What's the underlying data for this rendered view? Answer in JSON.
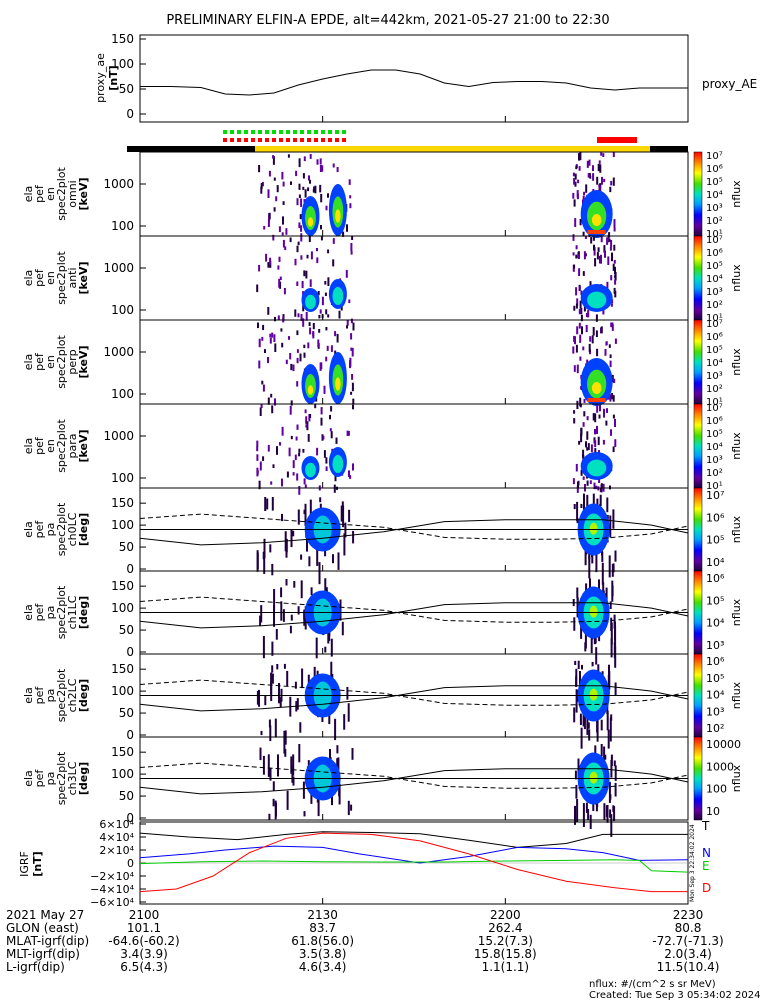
{
  "title": "PRELIMINARY ELFIN-A EPDE, alt=442km, 2021-05-27 21:00 to 22:30",
  "time_ticks": [
    "2100",
    "2130",
    "2200",
    "2230"
  ],
  "time_minutes": [
    0,
    30,
    60,
    90
  ],
  "footer": {
    "rows": [
      {
        "label": "2021 May 27",
        "values": [
          "2100",
          "2130",
          "2200",
          "2230"
        ]
      },
      {
        "label": "GLON (east)",
        "values": [
          "101.1",
          "83.7",
          "262.4",
          "80.8"
        ]
      },
      {
        "label": "MLAT-igrf(dip)",
        "values": [
          "-64.6(-60.2)",
          "61.8(56.0)",
          "15.2(7.3)",
          "-72.7(-71.3)"
        ]
      },
      {
        "label": "MLT-igrf(dip)",
        "values": [
          "3.4(3.9)",
          "3.5(3.8)",
          "15.8(15.8)",
          "2.0(3.4)"
        ]
      },
      {
        "label": "L-igrf(dip)",
        "values": [
          "6.5(4.3)",
          "4.6(3.4)",
          "1.1(1.1)",
          "11.5(10.4)"
        ]
      }
    ],
    "units_note": "nflux: #/(cm^2 s sr MeV)",
    "created": "Created: Tue Sep  3 05:34:02 2024",
    "side_stamp": "Mon Sep  3 22:34:02 2024"
  },
  "colors": {
    "ae": "#000000",
    "igrf_T": "#000000",
    "igrf_N": "#0000ff",
    "igrf_E": "#00cc00",
    "igrf_D": "#ff0000",
    "bar_yellow": "#ffd700",
    "bar_black": "#000000",
    "flag_green": "#00dd00",
    "flag_red": "#ff0000"
  },
  "chart_data": [
    {
      "type": "line",
      "name": "proxy_ae",
      "ylabel_lines": [
        "proxy_ae",
        "[nT]"
      ],
      "legend": "proxy_AE",
      "ylim": [
        0,
        150
      ],
      "yticks": [
        "0",
        "50",
        "100",
        "150"
      ],
      "x": [
        0,
        5,
        10,
        14,
        18,
        22,
        26,
        30,
        34,
        38,
        42,
        46,
        50,
        54,
        58,
        62,
        66,
        70,
        74,
        78,
        82,
        86,
        90
      ],
      "y": [
        55,
        55,
        53,
        40,
        38,
        42,
        58,
        70,
        80,
        88,
        88,
        80,
        62,
        55,
        63,
        65,
        65,
        62,
        52,
        48,
        52,
        52,
        52
      ]
    },
    {
      "type": "heatmap",
      "name": "energy spectrograms",
      "ylabel_lines": [
        [
          "ela",
          "pef",
          "en",
          "spec2plot",
          "omni",
          "[keV]"
        ],
        [
          "ela",
          "pef",
          "en",
          "spec2plot",
          "anti",
          "[keV]"
        ],
        [
          "ela",
          "pef",
          "en",
          "spec2plot",
          "perp",
          "[keV]"
        ],
        [
          "ela",
          "pef",
          "en",
          "spec2plot",
          "para",
          "[keV]"
        ]
      ],
      "yticks": [
        "100",
        "1000"
      ],
      "colorbar": {
        "label": "nflux",
        "log_ticks": [
          "10¹",
          "10²",
          "10³",
          "10⁴",
          "10⁵",
          "10⁶",
          "10⁷"
        ],
        "log_ticks_perp": [
          "10²",
          "10³",
          "10⁴",
          "10⁵",
          "10⁶",
          "10⁷"
        ]
      },
      "scale": "log",
      "science_zones_minutes": [
        [
          21,
          35
        ],
        [
          71,
          78
        ]
      ]
    },
    {
      "type": "heatmap",
      "name": "pitch-angle spectrograms",
      "ylabel_lines": [
        [
          "ela",
          "pef",
          "pa",
          "spec2plot",
          "ch0LC",
          "[deg]"
        ],
        [
          "ela",
          "pef",
          "pa",
          "spec2plot",
          "ch1LC",
          "[deg]"
        ],
        [
          "ela",
          "pef",
          "pa",
          "spec2plot",
          "ch2LC",
          "[deg]"
        ],
        [
          "ela",
          "pef",
          "pa",
          "spec2plot",
          "ch3LC",
          "[deg]"
        ]
      ],
      "ylim": [
        0,
        180
      ],
      "yticks": [
        "0",
        "50",
        "100",
        "150"
      ],
      "colorbars": [
        {
          "label": "nflux",
          "ticks": [
            "10⁴",
            "10⁵",
            "10⁶",
            "10⁷"
          ]
        },
        {
          "label": "nflux",
          "ticks": [
            "10³",
            "10⁴",
            "10⁵",
            "10⁶"
          ]
        },
        {
          "label": "nflux",
          "ticks": [
            "10²",
            "10³",
            "10⁴",
            "10⁵",
            "10⁶"
          ]
        },
        {
          "label": "nflux",
          "ticks": [
            "10",
            "100",
            "1000",
            "10000"
          ]
        }
      ]
    },
    {
      "type": "line",
      "name": "IGRF",
      "ylabel_lines": [
        "IGRF",
        "[nT]"
      ],
      "ylim": [
        -60000,
        60000
      ],
      "yticks": [
        "−6×10⁴",
        "−4×10⁴",
        "−2×10⁴",
        "0",
        "2×10⁴",
        "4×10⁴",
        "6×10⁴"
      ],
      "series": [
        {
          "name": "T",
          "x": [
            0,
            8,
            16,
            24,
            30,
            38,
            46,
            54,
            62,
            70,
            76,
            82,
            88,
            90
          ],
          "values": [
            46000,
            40000,
            36000,
            44000,
            48000,
            47000,
            45000,
            35000,
            24000,
            30000,
            44000,
            44000,
            44000,
            44000
          ]
        },
        {
          "name": "N",
          "x": [
            0,
            8,
            14,
            22,
            30,
            36,
            46,
            54,
            62,
            70,
            76,
            80,
            82,
            90
          ],
          "values": [
            8000,
            14000,
            20000,
            26000,
            24000,
            14000,
            0,
            10000,
            24000,
            22000,
            16000,
            8000,
            4000,
            5000
          ]
        },
        {
          "name": "E",
          "x": [
            0,
            10,
            20,
            30,
            40,
            50,
            60,
            70,
            78,
            82,
            84,
            90
          ],
          "values": [
            -1000,
            2000,
            3000,
            2000,
            1500,
            1500,
            3000,
            4000,
            5000,
            4000,
            -12000,
            -14000
          ]
        },
        {
          "name": "D",
          "x": [
            0,
            6,
            12,
            18,
            24,
            30,
            38,
            46,
            54,
            62,
            70,
            78,
            84,
            90
          ],
          "values": [
            -44000,
            -40000,
            -20000,
            16000,
            38000,
            46000,
            44000,
            34000,
            14000,
            -10000,
            -28000,
            -38000,
            -44000,
            -44000
          ]
        }
      ]
    }
  ]
}
